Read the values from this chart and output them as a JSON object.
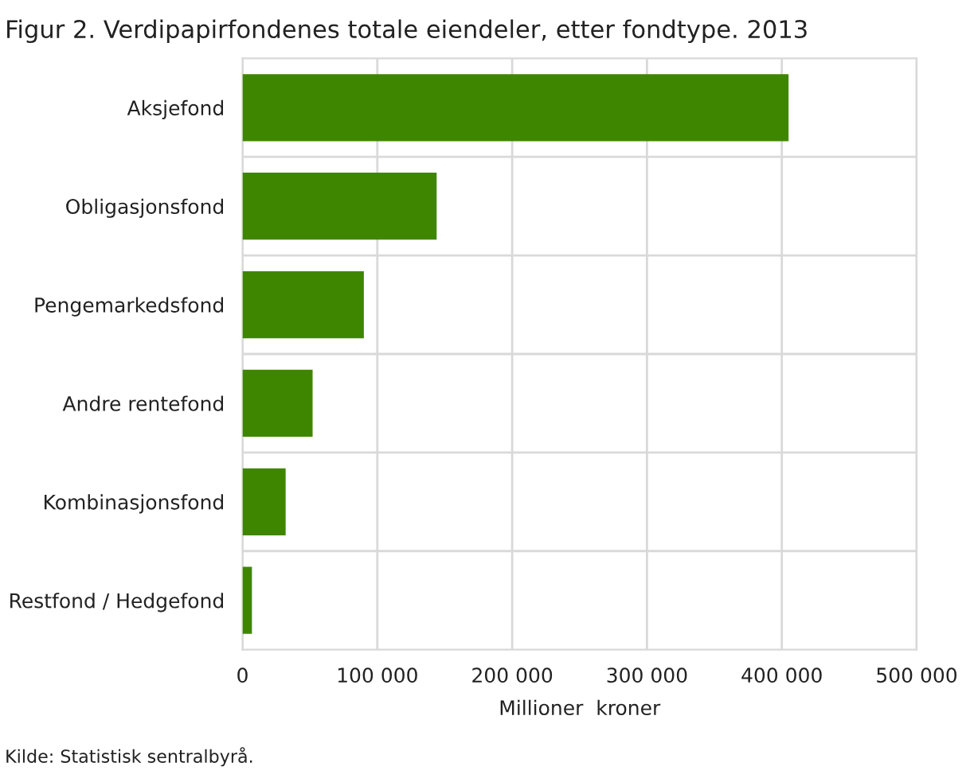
{
  "chart_data": {
    "type": "bar",
    "orientation": "horizontal",
    "title": "Figur 2. Verdipapirfondenes totale eiendeler, etter fondtype. 2013",
    "categories": [
      "Aksjefond",
      "Obligasjonsfond",
      "Pengemarkedsfond",
      "Andre rentefond",
      "Kombinasjonsfond",
      "Restfond / Hedgefond"
    ],
    "values": [
      405000,
      144000,
      90000,
      52000,
      32000,
      7000
    ],
    "color": "#3f8600",
    "xlim": [
      0,
      500000
    ],
    "xticks": [
      {
        "value": 0,
        "label": "0"
      },
      {
        "value": 100000,
        "label": "100 000"
      },
      {
        "value": 200000,
        "label": "200 000"
      },
      {
        "value": 300000,
        "label": "300 000"
      },
      {
        "value": 400000,
        "label": "400 000"
      },
      {
        "value": 500000,
        "label": "500 000"
      }
    ],
    "xlabel": "Millioner  kroner",
    "grid": true,
    "annotations": [
      "Kilde: Statistisk sentralbyrå."
    ]
  }
}
